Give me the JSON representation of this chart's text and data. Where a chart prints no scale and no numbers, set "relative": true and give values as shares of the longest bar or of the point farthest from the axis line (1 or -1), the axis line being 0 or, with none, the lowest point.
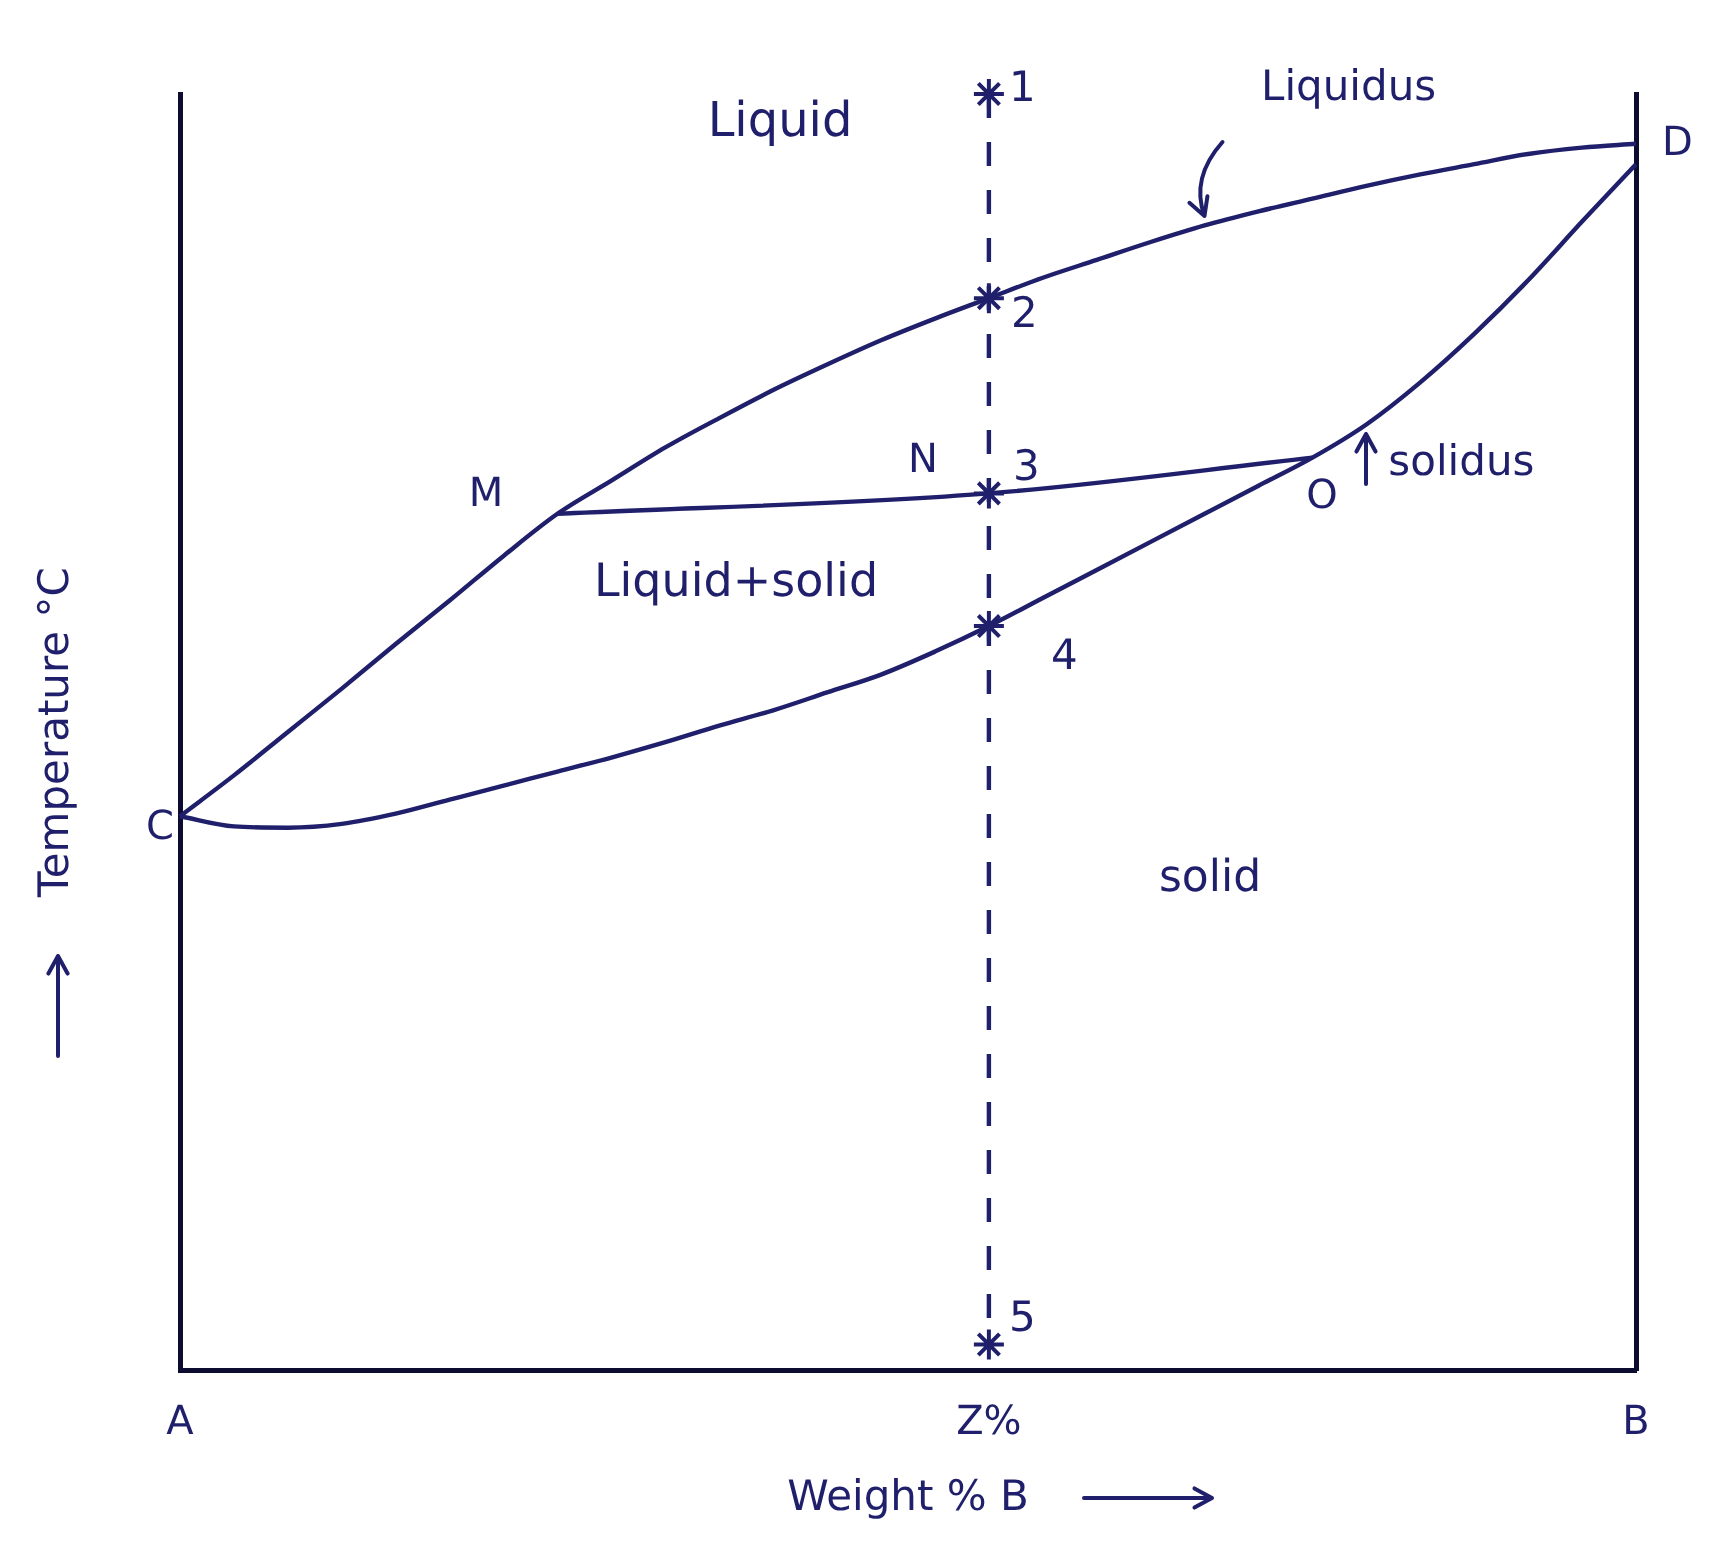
{
  "chart_data": {
    "type": "line",
    "xlabel": "Weight % B",
    "ylabel": "Temperature °C",
    "relative": true,
    "categories": [
      "A",
      null,
      null,
      null,
      null,
      null,
      null,
      null,
      null,
      null,
      null,
      null,
      null,
      null,
      null,
      "Z%",
      null,
      null,
      null,
      null,
      null,
      null,
      null,
      null,
      null,
      null,
      null,
      "B"
    ],
    "series": [
      {
        "name": "Liquidus",
        "color": "#1f1f6b",
        "values": [
          0.434,
          0.466,
          0.5,
          0.534,
          0.569,
          0.603,
          0.638,
          0.671,
          0.697,
          0.723,
          0.746,
          0.768,
          0.788,
          0.807,
          0.824,
          0.84,
          0.856,
          0.87,
          0.884,
          0.897,
          0.908,
          0.918,
          0.928,
          0.937,
          0.945,
          0.953,
          0.958,
          0.961
        ]
      },
      {
        "name": "solidus",
        "color": "#1f1f6b",
        "values": [
          0.434,
          0.426,
          0.425,
          0.428,
          0.436,
          0.447,
          0.458,
          0.469,
          0.48,
          0.492,
          0.505,
          0.517,
          0.531,
          0.545,
          0.563,
          0.583,
          0.605,
          0.627,
          0.649,
          0.671,
          0.693,
          0.715,
          0.741,
          0.774,
          0.812,
          0.854,
          0.9,
          0.945
        ]
      },
      {
        "color": "#1f1f6b",
        "values": [
          null,
          null,
          null,
          null,
          null,
          null,
          null,
          0.671,
          null,
          null,
          null,
          null,
          null,
          null,
          null,
          0.687,
          null,
          null,
          null,
          null,
          null,
          0.715,
          null,
          null,
          null,
          null,
          null,
          null
        ]
      },
      {
        "color": "#1f1f6b",
        "line_style": "dashed",
        "x": [
          "Z%",
          "Z%"
        ],
        "values": [
          1,
          0.02
        ]
      },
      {
        "type": "scatter",
        "color": "#1f1f6b",
        "marker": "cross",
        "x": [
          "Z%",
          "Z%",
          "Z%",
          "Z%",
          "Z%"
        ],
        "values": [
          1,
          0.84,
          0.687,
          0.583,
          0.02
        ]
      }
    ],
    "annotations": [
      "Liquid",
      {
        "text": "1",
        "x": "Z%",
        "y": 1
      },
      {
        "text": "2",
        "x": "Z%",
        "y": 0.84
      },
      "M",
      {
        "text": "N",
        "x": "Z%",
        "y": 0.687
      },
      {
        "text": "3",
        "x": "Z%",
        "y": 0.687
      },
      "O",
      "Liquid+solid",
      {
        "text": "4",
        "x": "Z%",
        "y": 0.583
      },
      {
        "text": "C",
        "x": "A",
        "y": 0.434
      },
      "solid",
      {
        "text": "5",
        "x": "Z%",
        "y": 0.02
      },
      {
        "text": "D",
        "x": "B",
        "y": 0.945
      }
    ]
  }
}
